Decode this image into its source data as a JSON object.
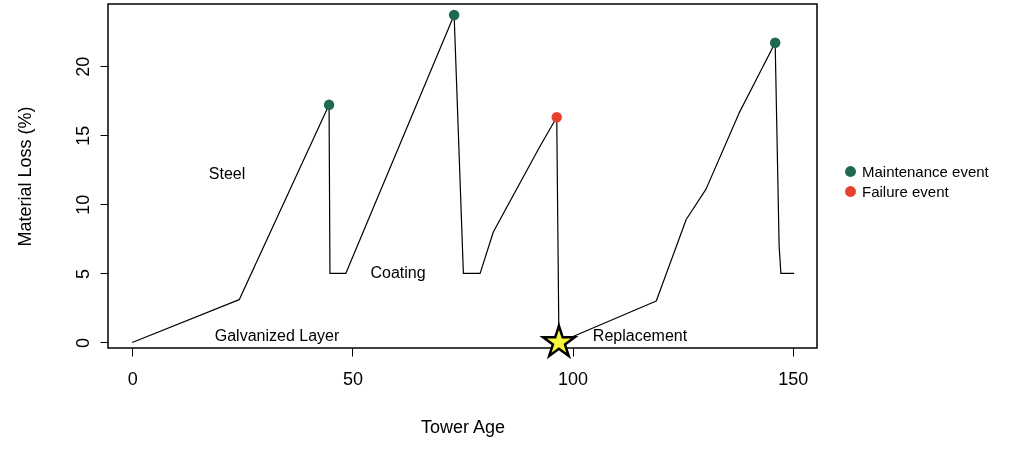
{
  "chart_data": {
    "type": "line",
    "xlabel": "Tower Age",
    "ylabel": "Material Loss (%)",
    "xlim": [
      -5.5,
      155.5
    ],
    "ylim": [
      -0.4,
      24.5
    ],
    "xticks": [
      0,
      50,
      100,
      150
    ],
    "yticks": [
      0,
      5,
      10,
      15,
      20
    ],
    "grid": false,
    "legend": "right",
    "marker": "none",
    "line_style": "solid",
    "series": [
      {
        "color": "#000000",
        "x": [
          0,
          24.3,
          44.7,
          44.9,
          48.5,
          73.1,
          75.2,
          79.0,
          82,
          92.6,
          96.4,
          96.9,
          119,
          125.8,
          130.3,
          137.8,
          146.0,
          146.9,
          147.3,
          150.3
        ],
        "values": [
          0,
          3.1,
          17.2,
          5.0,
          5.0,
          23.7,
          5.0,
          5.0,
          8.0,
          14.2,
          16.3,
          0,
          3.0,
          8.9,
          11.1,
          16.6,
          21.7,
          7.0,
          5.0,
          5.0
        ]
      },
      {
        "type": "scatter",
        "name": "Maintenance event",
        "color": "#1e6a50",
        "marker": "circle",
        "x": [
          44.7,
          73.1,
          146.0
        ],
        "values": [
          17.2,
          23.7,
          21.7
        ]
      },
      {
        "type": "scatter",
        "name": "Failure event",
        "color": "#e8402f",
        "marker": "circle",
        "x": [
          96.4
        ],
        "values": [
          16.3
        ]
      },
      {
        "type": "scatter",
        "color": "#f5f53c",
        "marker": "star",
        "x": [
          96.9
        ],
        "values": [
          0
        ]
      }
    ],
    "annotations": [
      "Steel",
      "Coating",
      "Galvanized Layer",
      "Replacement"
    ]
  }
}
